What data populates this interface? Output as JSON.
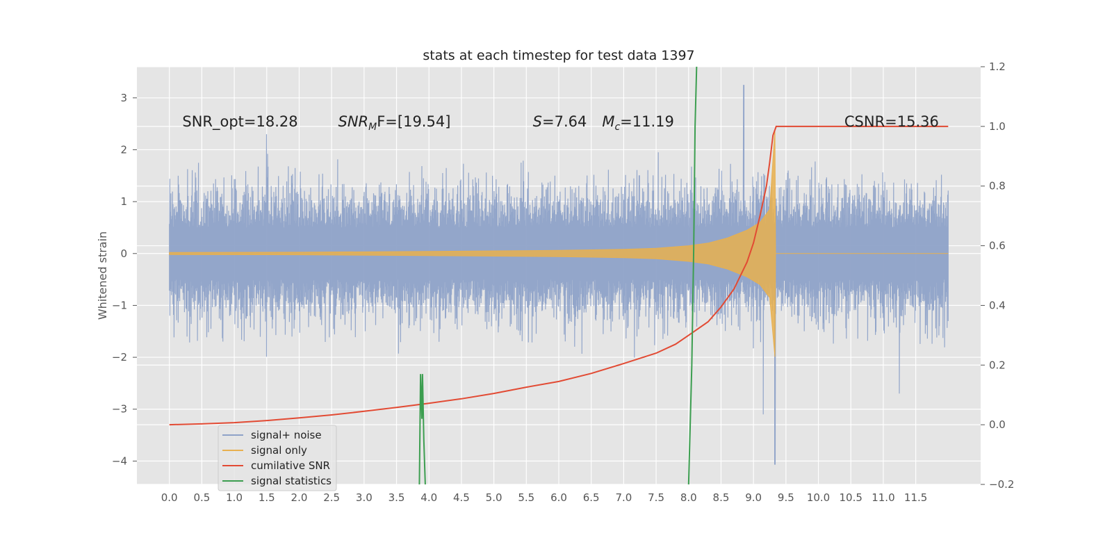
{
  "chart_data": {
    "type": "line",
    "title": "stats at each timestep for test data 1397",
    "ylabel": "Whitened strain",
    "xlabel": "",
    "xlim": [
      -0.5,
      12.5
    ],
    "ylim": [
      -4.45,
      3.6
    ],
    "y2lim": [
      -0.2,
      1.2
    ],
    "grid": true,
    "legend_placement": "lower-left",
    "x_ticks": [
      "0.0",
      "0.5",
      "1.0",
      "1.5",
      "2.0",
      "2.5",
      "3.0",
      "3.5",
      "4.0",
      "4.5",
      "5.0",
      "5.5",
      "6.0",
      "6.5",
      "7.0",
      "7.5",
      "8.0",
      "8.5",
      "9.0",
      "9.5",
      "10.0",
      "10.5",
      "11.0",
      "11.5"
    ],
    "y_ticks": [
      "3",
      "2",
      "1",
      "0",
      "−1",
      "−2",
      "−3",
      "−4"
    ],
    "y2_ticks": [
      "1.2",
      "1.0",
      "0.8",
      "0.6",
      "0.4",
      "0.2",
      "0.0",
      "−0.2"
    ],
    "annotations": [
      {
        "text": "SNR_opt=18.28",
        "x": 0.2,
        "y": 2.45
      },
      {
        "text": "SNR_MF=[19.54]",
        "x": 2.6,
        "y": 2.45
      },
      {
        "text": "S=7.64   M_c=11.19",
        "x": 5.6,
        "y": 2.45
      },
      {
        "text": "CSNR=15.36",
        "x": 10.4,
        "y": 2.45
      }
    ],
    "annotation_parts": {
      "snr_mf_main": "SNR",
      "snr_mf_sub": "M",
      "snr_mf_rest": "F=[19.54]",
      "s_var": "S",
      "s_rest": "=7.64",
      "mc_var": "M",
      "mc_sub": "c",
      "mc_rest": "=11.19"
    },
    "series": [
      {
        "name": "signal+ noise",
        "color": "#8ea2c8",
        "axis": "left",
        "x_range": [
          0.0,
          12.0
        ],
        "typical_amplitude": [
          -1.5,
          1.5
        ],
        "peaks": [
          [
            8.85,
            3.25
          ],
          [
            9.15,
            -3.1
          ],
          [
            9.33,
            -4.07
          ],
          [
            11.25,
            -2.7
          ],
          [
            1.5,
            2.3
          ],
          [
            6.0,
            1.0
          ]
        ]
      },
      {
        "name": "signal only",
        "color": "#e8b04f",
        "axis": "left",
        "x": [
          0.0,
          2.0,
          4.0,
          5.0,
          6.0,
          7.0,
          7.5,
          8.0,
          8.3,
          8.6,
          8.9,
          9.1,
          9.25,
          9.33,
          9.34,
          12.0
        ],
        "envelope": [
          0.02,
          0.025,
          0.04,
          0.05,
          0.06,
          0.08,
          0.1,
          0.15,
          0.2,
          0.3,
          0.45,
          0.6,
          0.85,
          2.4,
          0.0,
          0.0
        ]
      },
      {
        "name": "cumilative SNR",
        "color": "#e24a33",
        "axis": "right",
        "x": [
          0.0,
          0.5,
          1.0,
          1.5,
          2.0,
          2.5,
          3.0,
          3.5,
          4.0,
          4.5,
          5.0,
          5.5,
          6.0,
          6.5,
          7.0,
          7.5,
          7.8,
          8.0,
          8.3,
          8.5,
          8.7,
          8.9,
          9.0,
          9.1,
          9.2,
          9.25,
          9.3,
          9.35,
          12.0
        ],
        "values": [
          0.0,
          0.003,
          0.007,
          0.014,
          0.023,
          0.033,
          0.045,
          0.058,
          0.072,
          0.087,
          0.105,
          0.126,
          0.145,
          0.172,
          0.205,
          0.24,
          0.27,
          0.3,
          0.345,
          0.395,
          0.455,
          0.545,
          0.61,
          0.7,
          0.8,
          0.88,
          0.97,
          1.0,
          1.0
        ]
      },
      {
        "name": "signal statistics",
        "color": "#3c9e50",
        "axis": "right",
        "x": [
          3.85,
          3.87,
          3.89,
          3.9,
          3.92,
          3.95
        ],
        "values": [
          -0.25,
          0.17,
          0.02,
          0.17,
          -0.05,
          -0.25
        ],
        "x2": [
          8.0,
          8.05,
          8.08,
          8.1,
          8.13
        ],
        "values2": [
          -0.2,
          0.2,
          0.6,
          1.0,
          1.25
        ]
      }
    ]
  }
}
